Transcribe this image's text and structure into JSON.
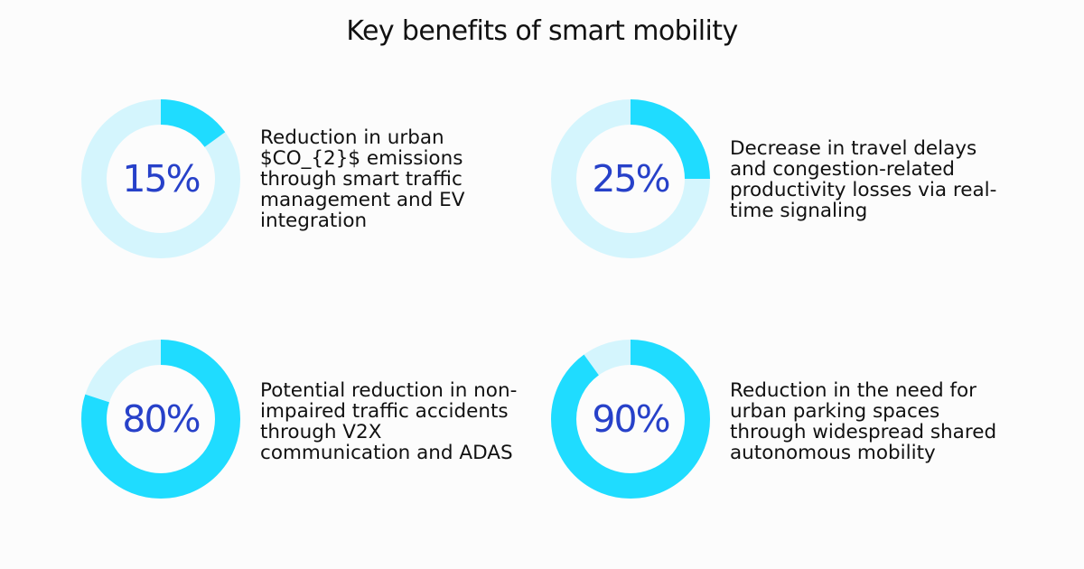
{
  "title": "Key benefits of smart mobility",
  "colors": {
    "ring_track": "#d4f5fd",
    "ring_fill": "#1fdcff",
    "percent_text": "#2741c9",
    "text": "#111111",
    "background": "#fcfcfc"
  },
  "chart_data": {
    "type": "pie",
    "title": "Key benefits of smart mobility",
    "items": [
      {
        "value": 15,
        "label": "15%",
        "description": "Reduction in urban\n$CO_{2}$ emissions\nthrough smart traffic\nmanagement and EV\nintegration"
      },
      {
        "value": 25,
        "label": "25%",
        "description": "Decrease in travel delays\nand congestion-related\nproductivity losses via real-\ntime signaling"
      },
      {
        "value": 80,
        "label": "80%",
        "description": "Potential reduction in non-\nimpaired traffic accidents\nthrough V2X\ncommunication and ADAS"
      },
      {
        "value": 90,
        "label": "90%",
        "description": "Reduction in the need for\nurban parking spaces\nthrough widespread shared\nautonomous mobility"
      }
    ]
  }
}
